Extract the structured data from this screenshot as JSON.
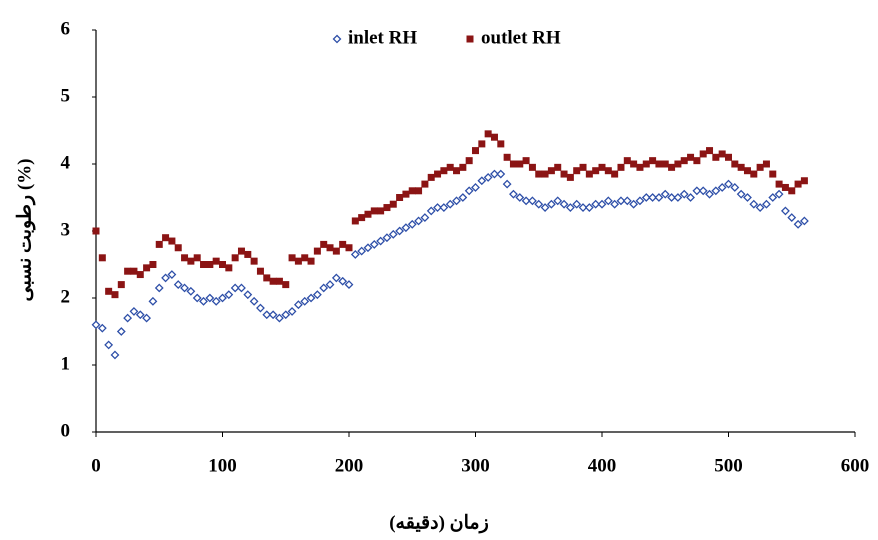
{
  "chart_data": {
    "type": "scatter",
    "x_label": "زمان (دقیقه)",
    "y_label": "رطوبت نسبی (%)",
    "xlim": [
      0,
      600
    ],
    "xticks": [
      0,
      100,
      200,
      300,
      400,
      500,
      600
    ],
    "ylim": [
      0,
      6
    ],
    "yticks": [
      0,
      1,
      2,
      3,
      4,
      5,
      6
    ],
    "grid": false,
    "legend": "top",
    "x": [
      0,
      5,
      10,
      15,
      20,
      25,
      30,
      35,
      40,
      45,
      50,
      55,
      60,
      65,
      70,
      75,
      80,
      85,
      90,
      95,
      100,
      105,
      110,
      115,
      120,
      125,
      130,
      135,
      140,
      145,
      150,
      155,
      160,
      165,
      170,
      175,
      180,
      185,
      190,
      195,
      200,
      205,
      210,
      215,
      220,
      225,
      230,
      235,
      240,
      245,
      250,
      255,
      260,
      265,
      270,
      275,
      280,
      285,
      290,
      295,
      300,
      305,
      310,
      315,
      320,
      325,
      330,
      335,
      340,
      345,
      350,
      355,
      360,
      365,
      370,
      375,
      380,
      385,
      390,
      395,
      400,
      405,
      410,
      415,
      420,
      425,
      430,
      435,
      440,
      445,
      450,
      455,
      460,
      465,
      470,
      475,
      480,
      485,
      490,
      495,
      500,
      505,
      510,
      515,
      520,
      525,
      530,
      535,
      540,
      545,
      550,
      555,
      560
    ],
    "series": [
      {
        "name": "inlet RH",
        "color": "#2e4fa8",
        "marker": "diamond",
        "values": [
          1.6,
          1.55,
          1.3,
          1.15,
          1.5,
          1.7,
          1.8,
          1.75,
          1.7,
          1.95,
          2.15,
          2.3,
          2.35,
          2.2,
          2.15,
          2.1,
          2.0,
          1.95,
          2.0,
          1.95,
          2.0,
          2.05,
          2.15,
          2.15,
          2.05,
          1.95,
          1.85,
          1.75,
          1.75,
          1.7,
          1.75,
          1.8,
          1.9,
          1.95,
          2.0,
          2.05,
          2.15,
          2.2,
          2.3,
          2.25,
          2.2,
          2.65,
          2.7,
          2.75,
          2.8,
          2.85,
          2.9,
          2.95,
          3.0,
          3.05,
          3.1,
          3.15,
          3.2,
          3.3,
          3.35,
          3.35,
          3.4,
          3.45,
          3.5,
          3.6,
          3.65,
          3.75,
          3.8,
          3.85,
          3.85,
          3.7,
          3.55,
          3.5,
          3.45,
          3.45,
          3.4,
          3.35,
          3.4,
          3.45,
          3.4,
          3.35,
          3.4,
          3.35,
          3.35,
          3.4,
          3.4,
          3.45,
          3.4,
          3.45,
          3.45,
          3.4,
          3.45,
          3.5,
          3.5,
          3.5,
          3.55,
          3.5,
          3.5,
          3.55,
          3.5,
          3.6,
          3.6,
          3.55,
          3.6,
          3.65,
          3.7,
          3.65,
          3.55,
          3.5,
          3.4,
          3.35,
          3.4,
          3.5,
          3.55,
          3.3,
          3.2,
          3.1,
          3.15
        ]
      },
      {
        "name": "outlet RH",
        "color": "#8b1414",
        "marker": "square",
        "values": [
          3.0,
          2.6,
          2.1,
          2.05,
          2.2,
          2.4,
          2.4,
          2.35,
          2.45,
          2.5,
          2.8,
          2.9,
          2.85,
          2.75,
          2.6,
          2.55,
          2.6,
          2.5,
          2.5,
          2.55,
          2.5,
          2.45,
          2.6,
          2.7,
          2.65,
          2.55,
          2.4,
          2.3,
          2.25,
          2.25,
          2.2,
          2.6,
          2.55,
          2.6,
          2.55,
          2.7,
          2.8,
          2.75,
          2.7,
          2.8,
          2.75,
          3.15,
          3.2,
          3.25,
          3.3,
          3.3,
          3.35,
          3.4,
          3.5,
          3.55,
          3.6,
          3.6,
          3.7,
          3.8,
          3.85,
          3.9,
          3.95,
          3.9,
          3.95,
          4.05,
          4.2,
          4.3,
          4.45,
          4.4,
          4.3,
          4.1,
          4.0,
          4.0,
          4.05,
          3.95,
          3.85,
          3.85,
          3.9,
          3.95,
          3.85,
          3.8,
          3.9,
          3.95,
          3.85,
          3.9,
          3.95,
          3.9,
          3.85,
          3.95,
          4.05,
          4.0,
          3.95,
          4.0,
          4.05,
          4.0,
          4.0,
          3.95,
          4.0,
          4.05,
          4.1,
          4.05,
          4.15,
          4.2,
          4.1,
          4.15,
          4.1,
          4.0,
          3.95,
          3.9,
          3.85,
          3.95,
          4.0,
          3.85,
          3.7,
          3.65,
          3.6,
          3.7,
          3.75
        ]
      }
    ]
  }
}
